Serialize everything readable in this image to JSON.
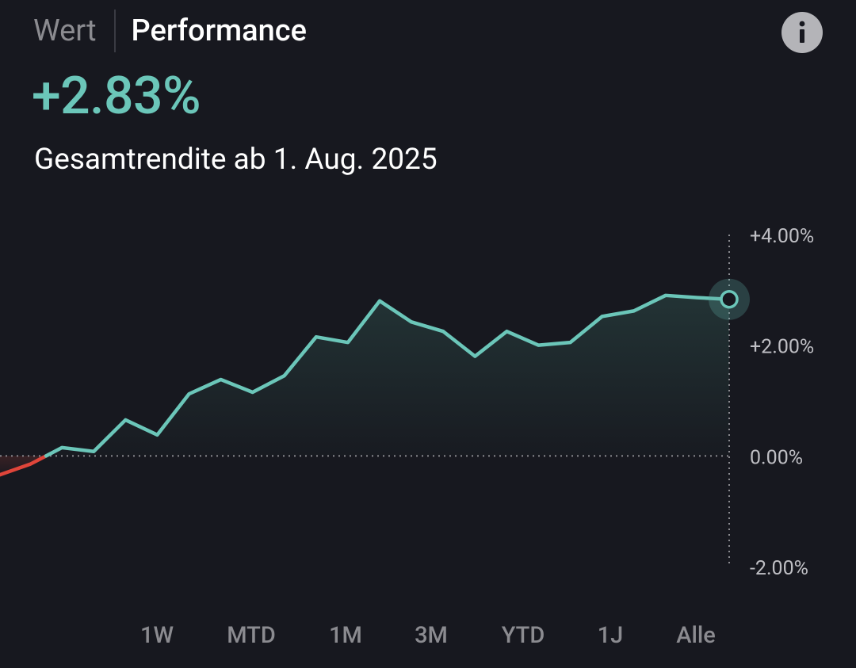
{
  "tabs": [
    {
      "label": "Wert",
      "active": false
    },
    {
      "label": "Performance",
      "active": true
    }
  ],
  "info_icon": "info-icon",
  "headline": {
    "value": "+2.83%",
    "color": "#6bc6b9"
  },
  "subline": "Gesamtrendite ab 1. Aug. 2025",
  "chart_data": {
    "type": "line",
    "title": "",
    "xlabel": "",
    "ylabel": "",
    "ylim": [
      -2.0,
      4.0
    ],
    "y_ticks": [
      "+4.00%",
      "+2.00%",
      "0.00%",
      "-2.00%"
    ],
    "y_tick_values": [
      4.0,
      2.0,
      0.0,
      -2.0
    ],
    "baseline": 0.0,
    "grid": false,
    "series": [
      {
        "values": [
          -0.35,
          -0.15,
          0.15,
          0.08,
          0.65,
          0.38,
          1.12,
          1.38,
          1.15,
          1.45,
          2.15,
          2.05,
          2.8,
          2.42,
          2.25,
          1.8,
          2.25,
          2.0,
          2.05,
          2.52,
          2.62,
          2.9,
          2.86,
          2.83
        ]
      }
    ],
    "positive_color": "#6bc6b9",
    "negative_color": "#e0453a",
    "last_value": 2.83
  },
  "ranges": [
    {
      "label": "1W",
      "selected": false
    },
    {
      "label": "MTD",
      "selected": true
    },
    {
      "label": "1M",
      "selected": false
    },
    {
      "label": "3M",
      "selected": false
    },
    {
      "label": "YTD",
      "selected": false
    },
    {
      "label": "1J",
      "selected": false
    },
    {
      "label": "Alle",
      "selected": false
    }
  ]
}
